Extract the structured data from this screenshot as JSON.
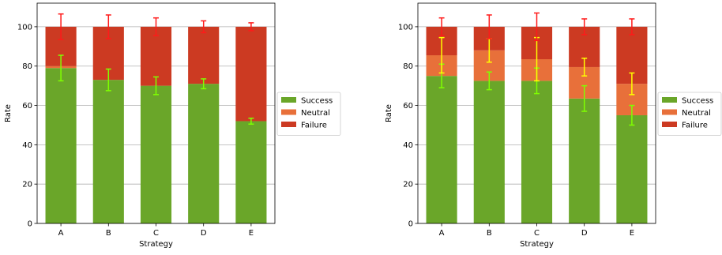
{
  "colors": {
    "success": "#6aa629",
    "neutral": "#e8703a",
    "failure": "#cc3a22",
    "success_err": "#7fff00",
    "neutral_err": "#ffff00",
    "failure_err": "#ff1a1a",
    "grid": "#b0b0b0"
  },
  "chart_data": [
    {
      "type": "bar",
      "stacked": true,
      "xlabel": "Strategy",
      "ylabel": "Rate",
      "ylim": [
        0,
        112
      ],
      "yticks": [
        0,
        20,
        40,
        60,
        80,
        100
      ],
      "grid": "y",
      "legend_position": "right",
      "categories": [
        "A",
        "B",
        "C",
        "D",
        "E"
      ],
      "series": [
        {
          "name": "Success",
          "values": [
            79,
            73,
            70,
            71,
            52
          ],
          "errors": [
            6.5,
            5.5,
            4.5,
            2.5,
            1.5
          ]
        },
        {
          "name": "Neutral",
          "values": [
            1,
            0,
            0,
            0,
            0
          ],
          "errors": [
            0,
            0,
            0,
            0,
            0
          ]
        },
        {
          "name": "Failure",
          "values": [
            20,
            27,
            30,
            29,
            48
          ],
          "errors": [
            6.5,
            6,
            4.5,
            3,
            2
          ]
        }
      ]
    },
    {
      "type": "bar",
      "stacked": true,
      "xlabel": "Strategy",
      "ylabel": "Rate",
      "ylim": [
        0,
        112
      ],
      "yticks": [
        0,
        20,
        40,
        60,
        80,
        100
      ],
      "grid": "y",
      "legend_position": "right",
      "categories": [
        "A",
        "B",
        "C",
        "D",
        "E"
      ],
      "series": [
        {
          "name": "Success",
          "values": [
            75,
            72.5,
            72.5,
            63.5,
            55
          ],
          "errors": [
            6,
            4.5,
            6.5,
            6.5,
            5
          ]
        },
        {
          "name": "Neutral",
          "values": [
            10.5,
            15.5,
            11,
            16,
            16
          ],
          "errors": [
            9,
            6,
            11,
            4.5,
            5.5
          ]
        },
        {
          "name": "Failure",
          "values": [
            14.5,
            12,
            16.5,
            20.5,
            29
          ],
          "errors": [
            4.5,
            6,
            7,
            4,
            4
          ]
        }
      ]
    }
  ]
}
